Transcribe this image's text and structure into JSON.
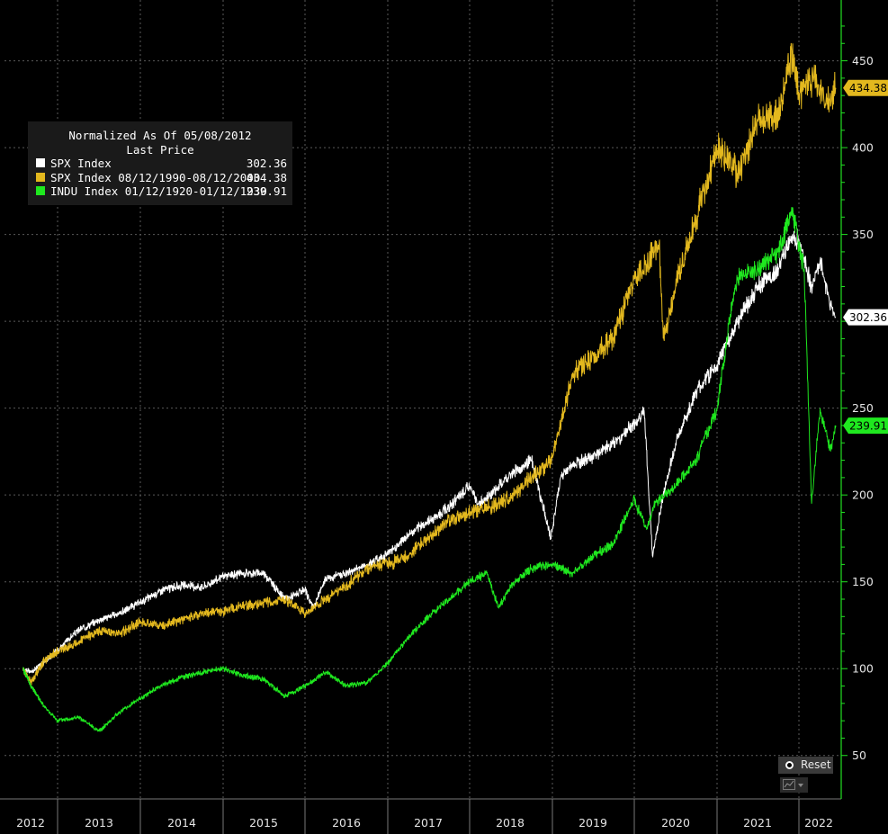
{
  "chart_data": {
    "type": "line",
    "legend": {
      "title": "Normalized As Of 05/08/2012",
      "subtitle": "Last Price",
      "placement": "top-left"
    },
    "x_labels": [
      "2012",
      "2013",
      "2014",
      "2015",
      "2016",
      "2017",
      "2018",
      "2019",
      "2020",
      "2021",
      "2022"
    ],
    "ylim": [
      25,
      485
    ],
    "yticks": [
      50,
      100,
      150,
      200,
      250,
      300,
      350,
      400,
      450
    ],
    "grid": true,
    "series": [
      {
        "name": "SPX Index",
        "last_label": "302.36",
        "color": "#ffffff",
        "x": [
          2012.35,
          2012.5,
          2012.75,
          2013.0,
          2013.25,
          2013.5,
          2013.75,
          2014.0,
          2014.25,
          2014.5,
          2014.75,
          2015.0,
          2015.25,
          2015.5,
          2015.75,
          2016.0,
          2016.1,
          2016.25,
          2016.5,
          2016.75,
          2017.0,
          2017.25,
          2017.5,
          2017.75,
          2018.0,
          2018.1,
          2018.25,
          2018.5,
          2018.75,
          2018.98,
          2019.1,
          2019.25,
          2019.5,
          2019.75,
          2020.0,
          2020.12,
          2020.22,
          2020.35,
          2020.5,
          2020.75,
          2021.0,
          2021.25,
          2021.5,
          2021.75,
          2021.92,
          2022.0,
          2022.12,
          2022.2,
          2022.3,
          2022.35
        ],
        "y": [
          100,
          98,
          104,
          111,
          122,
          128,
          132,
          138,
          145,
          148,
          147,
          153,
          155,
          155,
          140,
          145,
          135,
          152,
          155,
          160,
          166,
          177,
          185,
          193,
          205,
          195,
          200,
          212,
          220,
          175,
          210,
          218,
          222,
          230,
          241,
          248,
          165,
          200,
          230,
          260,
          275,
          300,
          320,
          330,
          350,
          347,
          320,
          335,
          310,
          302.36
        ]
      },
      {
        "name": "SPX Index 08/12/1990-08/12/2000",
        "last_label": "434.38",
        "color": "#e3b81e",
        "x": [
          2012.35,
          2012.5,
          2012.75,
          2013.0,
          2013.25,
          2013.5,
          2013.75,
          2014.0,
          2014.25,
          2014.5,
          2014.75,
          2015.0,
          2015.25,
          2015.5,
          2015.75,
          2016.0,
          2016.25,
          2016.5,
          2016.75,
          2017.0,
          2017.25,
          2017.5,
          2017.75,
          2018.0,
          2018.25,
          2018.5,
          2018.75,
          2018.98,
          2019.1,
          2019.25,
          2019.5,
          2019.75,
          2020.0,
          2020.15,
          2020.3,
          2020.35,
          2020.5,
          2020.75,
          2021.0,
          2021.25,
          2021.5,
          2021.75,
          2021.92,
          2022.0,
          2022.15,
          2022.25,
          2022.35
        ],
        "y": [
          100,
          92,
          105,
          110,
          115,
          122,
          120,
          127,
          125,
          128,
          132,
          133,
          136,
          138,
          140,
          132,
          140,
          148,
          158,
          160,
          165,
          176,
          185,
          190,
          193,
          198,
          210,
          220,
          240,
          270,
          280,
          290,
          325,
          333,
          345,
          290,
          320,
          360,
          400,
          385,
          415,
          420,
          455,
          430,
          440,
          425,
          434.38
        ]
      },
      {
        "name": "INDU Index 01/12/1920-01/12/1930",
        "last_label": "239.91",
        "color": "#1fe81f",
        "x": [
          2012.35,
          2012.5,
          2012.75,
          2013.0,
          2013.25,
          2013.5,
          2013.75,
          2014.0,
          2014.25,
          2014.5,
          2014.75,
          2015.0,
          2015.25,
          2015.5,
          2015.75,
          2016.0,
          2016.25,
          2016.5,
          2016.75,
          2017.0,
          2017.25,
          2017.5,
          2017.75,
          2018.0,
          2018.2,
          2018.35,
          2018.5,
          2018.75,
          2019.0,
          2019.25,
          2019.5,
          2019.75,
          2020.0,
          2020.15,
          2020.25,
          2020.5,
          2020.75,
          2021.0,
          2021.15,
          2021.25,
          2021.5,
          2021.75,
          2021.92,
          2022.05,
          2022.12,
          2022.2,
          2022.3,
          2022.35
        ],
        "y": [
          100,
          90,
          78,
          70,
          72,
          64,
          75,
          83,
          90,
          95,
          98,
          100,
          96,
          94,
          84,
          90,
          98,
          90,
          92,
          103,
          118,
          130,
          140,
          150,
          155,
          135,
          148,
          158,
          160,
          155,
          165,
          172,
          198,
          180,
          195,
          205,
          220,
          250,
          300,
          325,
          330,
          340,
          365,
          330,
          195,
          250,
          225,
          239.91
        ]
      }
    ]
  },
  "controls": {
    "reset_label": "Reset",
    "chart_type_icon": "chart-type-icon"
  }
}
